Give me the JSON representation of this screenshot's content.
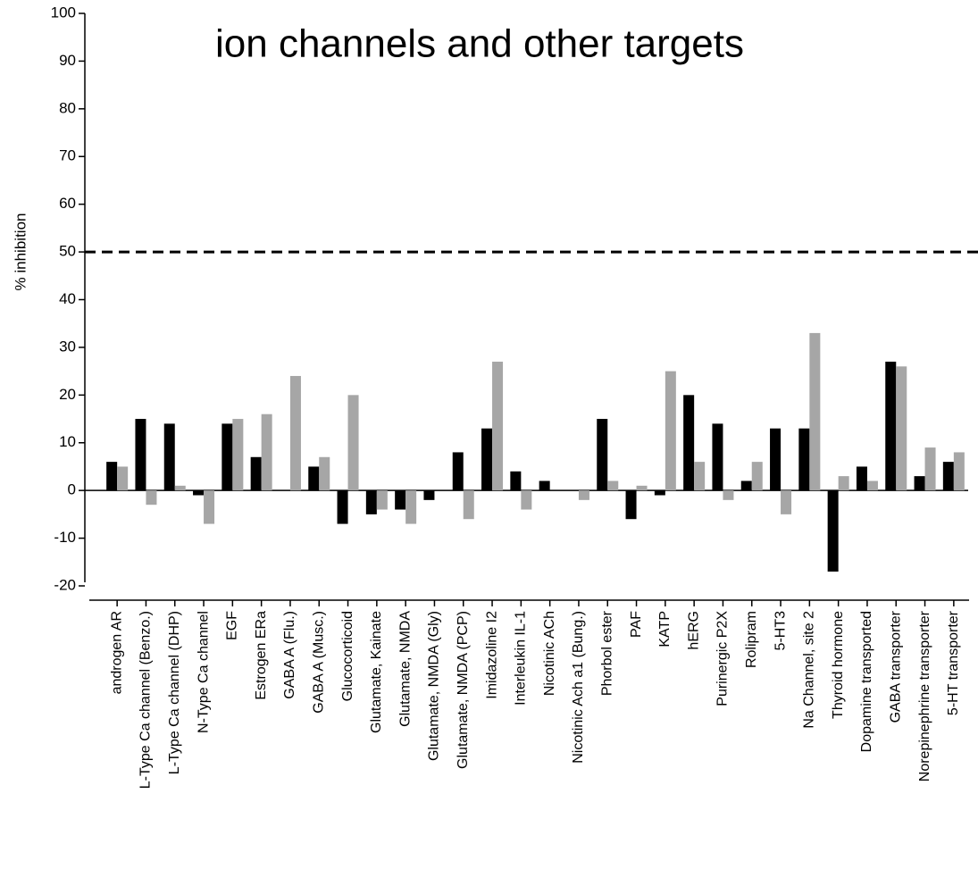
{
  "chart_data": {
    "type": "bar",
    "title": "ion channels and other targets",
    "y_label": "% inhibition",
    "categories": [
      "androgen AR",
      "L-Type Ca channel (Benzo.)",
      "L-Type Ca channel (DHP)",
      "N-Type Ca channel",
      "EGF",
      "Estrogen ERa",
      "GABA A (Flu.)",
      "GABA A (Musc.)",
      "Glucocorticoid",
      "Glutamate, Kainate",
      "Glutamate, NMDA",
      "Glutamate, NMDA (Gly)",
      "Glutamate, NMDA (PCP)",
      "Imidazoline I2",
      "Interleukin IL-1",
      "Nicotinic ACh",
      "Nicotinic Ach a1 (Bung.)",
      "Phorbol ester",
      "PAF",
      "KATP",
      "hERG",
      "Purinergic P2X",
      "Rolipram",
      "5-HT3",
      "Na Channel, site 2",
      "Thyroid hormone",
      "Dopamine transported",
      "GABA transporter",
      "Norepinephrine transporter",
      "5-HT transporter"
    ],
    "series": [
      {
        "color": "#000000",
        "values": [
          6,
          15,
          14,
          -1,
          14,
          7,
          0,
          5,
          -7,
          -5,
          -4,
          -2,
          8,
          13,
          4,
          2,
          0,
          15,
          -6,
          -1,
          20,
          14,
          2,
          13,
          13,
          -17,
          5,
          27,
          3,
          6
        ]
      },
      {
        "color": "#a6a6a6",
        "values": [
          5,
          -3,
          1,
          -7,
          15,
          16,
          24,
          7,
          20,
          -4,
          -7,
          0,
          -6,
          27,
          -4,
          0,
          -2,
          2,
          1,
          25,
          6,
          -2,
          6,
          -5,
          33,
          3,
          2,
          26,
          9,
          8
        ]
      }
    ],
    "ylim": [
      -20,
      100
    ],
    "yticks": [
      -20,
      -10,
      0,
      10,
      20,
      30,
      40,
      50,
      60,
      70,
      80,
      90,
      100
    ],
    "reference_line": 50
  }
}
